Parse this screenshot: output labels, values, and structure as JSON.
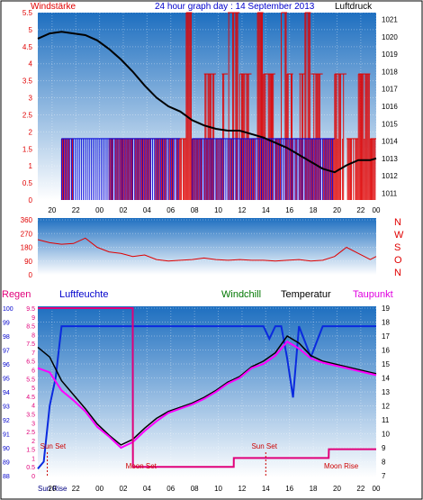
{
  "header": {
    "title": "24 hour graph day : 14 September 2013",
    "left_label": "Windstärke",
    "right_label": "Luftdruck"
  },
  "middle": {
    "compass": [
      "N",
      "W",
      "S",
      "O",
      "N"
    ]
  },
  "bottom_header": {
    "regen": "Regen",
    "luftfeuchte": "Luftfeuchte",
    "windchill": "Windchill",
    "temperatur": "Temperatur",
    "taupunkt": "Taupunkt"
  },
  "colors": {
    "bg_top": "#1e6fc0",
    "bg_bottom": "#ffffff",
    "wind": "#e00000",
    "gust": "#0000dd",
    "pressure": "#000000",
    "humidity": "#0a2adf",
    "dewpoint": "#ff00ff",
    "temperature": "#000000",
    "rain": "#e0007a",
    "moon": "#e0007a"
  },
  "chart_data": [
    {
      "type": "bar",
      "title": "24 hour graph day : 14 September 2013",
      "x_ticks": [
        "20",
        "22",
        "00",
        "02",
        "04",
        "06",
        "08",
        "10",
        "12",
        "14",
        "16",
        "18",
        "20",
        "22",
        "00"
      ],
      "left_axis": {
        "label": "Windstärke",
        "ticks": [
          "5.5",
          "5",
          "4.5",
          "4",
          "3.5",
          "3",
          "2.5",
          "2",
          "1.5",
          "1",
          "0.5",
          "0"
        ],
        "range": [
          0,
          5.5
        ]
      },
      "right_axis": {
        "label": "Luftdruck",
        "ticks": [
          "1021",
          "1020",
          "1019",
          "1018",
          "1017",
          "1016",
          "1015",
          "1014",
          "1013",
          "1012",
          "1011"
        ],
        "range": [
          1010.6,
          1021.4
        ]
      },
      "series": [
        {
          "name": "wind",
          "type": "bar",
          "hours": [
            0,
            2,
            3,
            6,
            12,
            12.5,
            13,
            14,
            15,
            15.5,
            16,
            17,
            18,
            18.5,
            19,
            20,
            20.5,
            21,
            21.5,
            22,
            22.5,
            23,
            24,
            25,
            26,
            27,
            28,
            28.5
          ],
          "values": [
            0,
            1.8,
            0,
            1.8,
            1.8,
            5.5,
            1.8,
            3.7,
            1.8,
            3.7,
            5.5,
            3.7,
            1.8,
            5.5,
            3.7,
            1.8,
            5.5,
            3.7,
            1.8,
            3.7,
            5.5,
            3.7,
            1.8,
            3.7,
            1.8,
            3.7,
            1.8,
            1.8
          ]
        },
        {
          "name": "gust",
          "type": "bar",
          "hours": [
            0,
            2,
            3,
            12,
            13,
            14,
            15,
            16,
            17,
            18,
            19,
            20,
            21,
            22,
            23,
            24,
            25,
            26,
            27,
            28
          ],
          "values": [
            0,
            1.8,
            1.8,
            0,
            1.8,
            1.8,
            1.8,
            1.8,
            1.8,
            1.8,
            1.8,
            1.8,
            1.8,
            1.8,
            1.8,
            1.8,
            0,
            0,
            0,
            0
          ]
        },
        {
          "name": "pressure",
          "type": "line",
          "hours": [
            0,
            1,
            2,
            3,
            4,
            5,
            6,
            7,
            8,
            9,
            10,
            11,
            12,
            13,
            14,
            15,
            16,
            17,
            18,
            19,
            20,
            21,
            22,
            23,
            24,
            25,
            26,
            27,
            28,
            28.5
          ],
          "values": [
            1019.9,
            1020.2,
            1020.3,
            1020.2,
            1020.1,
            1019.8,
            1019.3,
            1018.7,
            1018.0,
            1017.2,
            1016.5,
            1016.0,
            1015.7,
            1015.2,
            1014.9,
            1014.7,
            1014.6,
            1014.6,
            1014.4,
            1014.2,
            1013.9,
            1013.6,
            1013.2,
            1012.8,
            1012.4,
            1012.2,
            1012.6,
            1012.9,
            1012.9,
            1013.0
          ]
        }
      ]
    },
    {
      "type": "line",
      "title": "",
      "left_axis": {
        "ticks": [
          "360",
          "270",
          "180",
          "90",
          "0"
        ],
        "range": [
          0,
          360
        ]
      },
      "right_axis_labels": [
        "N",
        "W",
        "S",
        "O",
        "N"
      ],
      "series": [
        {
          "name": "wind direction",
          "hours": [
            0,
            1,
            2,
            3,
            4,
            5,
            6,
            7,
            8,
            9,
            10,
            11,
            12,
            13,
            14,
            15,
            16,
            17,
            18,
            19,
            20,
            21,
            22,
            23,
            24,
            25,
            26,
            27,
            28,
            28.5
          ],
          "values": [
            230,
            210,
            200,
            205,
            240,
            180,
            150,
            140,
            120,
            130,
            100,
            90,
            95,
            100,
            110,
            100,
            95,
            100,
            95,
            95,
            90,
            95,
            100,
            90,
            95,
            120,
            180,
            140,
            100,
            120
          ]
        }
      ]
    },
    {
      "type": "line",
      "title": "",
      "left_axis": {
        "label": "Luftfeuchte",
        "ticks": [
          "100",
          "99",
          "98",
          "97",
          "96",
          "95",
          "94",
          "93",
          "92",
          "91",
          "90",
          "89",
          "88"
        ],
        "range": [
          88,
          100
        ]
      },
      "left_axis_2": {
        "label": "Regen",
        "ticks": [
          "9.5",
          "9",
          "8.5",
          "8",
          "7.5",
          "7",
          "6.5",
          "6",
          "5.5",
          "5",
          "4.5",
          "4",
          "3.5",
          "3",
          "2.5",
          "2",
          "1.5",
          "1",
          "0.5",
          "0"
        ],
        "range": [
          0,
          9.5
        ]
      },
      "right_axis": {
        "label": "Temperatur",
        "ticks": [
          "19",
          "18",
          "17",
          "16",
          "15",
          "14",
          "13",
          "12",
          "11",
          "10",
          "9",
          "8",
          "7"
        ],
        "range": [
          7,
          19
        ]
      },
      "x_ticks": [
        "Sun Rise",
        "20",
        "22",
        "00",
        "02",
        "04",
        "06",
        "08",
        "10",
        "12",
        "14",
        "16",
        "18",
        "20",
        "22",
        "00"
      ],
      "annotations": [
        "Sun Set",
        "Moon Set",
        "Moon Rise",
        "Sun Set"
      ],
      "series": [
        {
          "name": "Luftfeuchte",
          "axis": "left",
          "hours": [
            0,
            0.5,
            1,
            1.5,
            2,
            3,
            4,
            6,
            8,
            10,
            12,
            14,
            16,
            18,
            19,
            19.5,
            20,
            20.5,
            21,
            21.5,
            22,
            23,
            24,
            25,
            26,
            27,
            28,
            28.5
          ],
          "values": [
            88.5,
            89,
            93,
            95,
            98.7,
            98.7,
            98.7,
            98.7,
            98.7,
            98.7,
            98.7,
            98.7,
            98.7,
            98.7,
            98.7,
            97.8,
            98.7,
            98.7,
            96.4,
            93.6,
            98.7,
            96.5,
            98.7,
            98.7,
            98.7,
            98.7,
            98.7,
            98.7
          ]
        },
        {
          "name": "Temperatur",
          "axis": "right",
          "hours": [
            0,
            1,
            2,
            3,
            4,
            5,
            6,
            7,
            8,
            9,
            10,
            11,
            12,
            13,
            14,
            15,
            16,
            17,
            18,
            19,
            20,
            21,
            22,
            23,
            24,
            25,
            26,
            27,
            28,
            28.5
          ],
          "values": [
            16.2,
            15.5,
            13.8,
            12.8,
            11.8,
            10.7,
            9.9,
            9.2,
            9.6,
            10.4,
            11.1,
            11.6,
            11.9,
            12.2,
            12.6,
            13.1,
            13.7,
            14.1,
            14.8,
            15.2,
            15.8,
            17.0,
            16.5,
            15.6,
            15.2,
            15.0,
            14.8,
            14.6,
            14.4,
            14.3
          ]
        },
        {
          "name": "Taupunkt",
          "axis": "right",
          "hours": [
            0,
            1,
            2,
            3,
            4,
            5,
            6,
            7,
            8,
            9,
            10,
            11,
            12,
            13,
            14,
            15,
            16,
            17,
            18,
            19,
            20,
            21,
            22,
            23,
            24,
            25,
            26,
            27,
            28,
            28.5
          ],
          "values": [
            14.7,
            14.4,
            13.1,
            12.4,
            11.6,
            10.5,
            9.8,
            9.0,
            9.4,
            10.2,
            10.9,
            11.5,
            11.8,
            12.1,
            12.5,
            13.0,
            13.6,
            14.0,
            14.7,
            15.0,
            15.6,
            16.6,
            16.1,
            15.4,
            15.1,
            14.9,
            14.7,
            14.5,
            14.3,
            14.2
          ]
        },
        {
          "name": "Regen",
          "axis": "left2",
          "hours": [
            0,
            8,
            8.01,
            16.5,
            16.51,
            24.5,
            24.51,
            28.5
          ],
          "values": [
            9.5,
            9.5,
            0.5,
            0.5,
            1,
            1,
            1.5,
            1.5
          ]
        }
      ]
    }
  ]
}
